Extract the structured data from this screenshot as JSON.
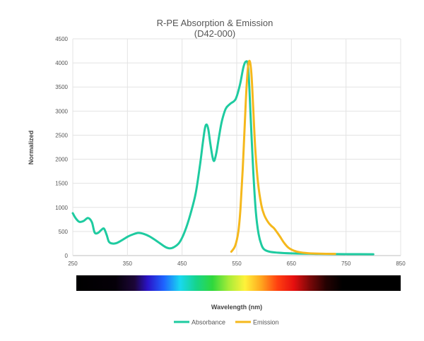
{
  "chart_data": {
    "type": "line",
    "title": "R-PE Absorption & Emission",
    "subtitle": "(D42-000)",
    "xlabel": "Wavelength (nm)",
    "ylabel": "Normalized",
    "xlim": [
      250,
      850
    ],
    "ylim": [
      0,
      4500
    ],
    "x_ticks": [
      250,
      350,
      450,
      550,
      650,
      750,
      850
    ],
    "y_ticks": [
      0,
      500,
      1000,
      1500,
      2000,
      2500,
      3000,
      3500,
      4000,
      4500
    ],
    "grid": true,
    "legend_position": "bottom-center",
    "spectrum_bar": true,
    "series": [
      {
        "name": "Absorbance",
        "color": "#1ecba0",
        "points": [
          [
            250,
            880
          ],
          [
            255,
            780
          ],
          [
            262,
            700
          ],
          [
            270,
            720
          ],
          [
            278,
            780
          ],
          [
            285,
            690
          ],
          [
            290,
            480
          ],
          [
            296,
            470
          ],
          [
            302,
            530
          ],
          [
            307,
            560
          ],
          [
            312,
            430
          ],
          [
            316,
            290
          ],
          [
            322,
            250
          ],
          [
            330,
            260
          ],
          [
            340,
            320
          ],
          [
            350,
            390
          ],
          [
            360,
            440
          ],
          [
            370,
            470
          ],
          [
            380,
            450
          ],
          [
            390,
            400
          ],
          [
            400,
            330
          ],
          [
            410,
            250
          ],
          [
            420,
            175
          ],
          [
            428,
            150
          ],
          [
            435,
            175
          ],
          [
            445,
            270
          ],
          [
            455,
            500
          ],
          [
            465,
            850
          ],
          [
            475,
            1300
          ],
          [
            483,
            1900
          ],
          [
            488,
            2350
          ],
          [
            492,
            2650
          ],
          [
            495,
            2720
          ],
          [
            498,
            2620
          ],
          [
            502,
            2300
          ],
          [
            506,
            2030
          ],
          [
            509,
            1970
          ],
          [
            513,
            2150
          ],
          [
            518,
            2500
          ],
          [
            523,
            2800
          ],
          [
            530,
            3050
          ],
          [
            538,
            3150
          ],
          [
            548,
            3250
          ],
          [
            556,
            3550
          ],
          [
            562,
            3900
          ],
          [
            567,
            4030
          ],
          [
            571,
            3900
          ],
          [
            575,
            3000
          ],
          [
            580,
            1800
          ],
          [
            585,
            900
          ],
          [
            590,
            450
          ],
          [
            595,
            230
          ],
          [
            600,
            130
          ],
          [
            610,
            80
          ],
          [
            625,
            60
          ],
          [
            650,
            45
          ],
          [
            700,
            35
          ],
          [
            750,
            30
          ],
          [
            800,
            28
          ]
        ]
      },
      {
        "name": "Emission",
        "color": "#f5b81c",
        "points": [
          [
            540,
            80
          ],
          [
            547,
            200
          ],
          [
            553,
            500
          ],
          [
            557,
            1000
          ],
          [
            561,
            1800
          ],
          [
            565,
            2800
          ],
          [
            568,
            3500
          ],
          [
            571,
            3950
          ],
          [
            574,
            4030
          ],
          [
            577,
            3750
          ],
          [
            580,
            3100
          ],
          [
            584,
            2200
          ],
          [
            589,
            1500
          ],
          [
            595,
            1050
          ],
          [
            600,
            850
          ],
          [
            607,
            700
          ],
          [
            613,
            620
          ],
          [
            618,
            570
          ],
          [
            624,
            480
          ],
          [
            630,
            380
          ],
          [
            637,
            260
          ],
          [
            645,
            160
          ],
          [
            655,
            100
          ],
          [
            665,
            70
          ],
          [
            680,
            50
          ],
          [
            700,
            40
          ],
          [
            730,
            35
          ]
        ]
      }
    ]
  }
}
